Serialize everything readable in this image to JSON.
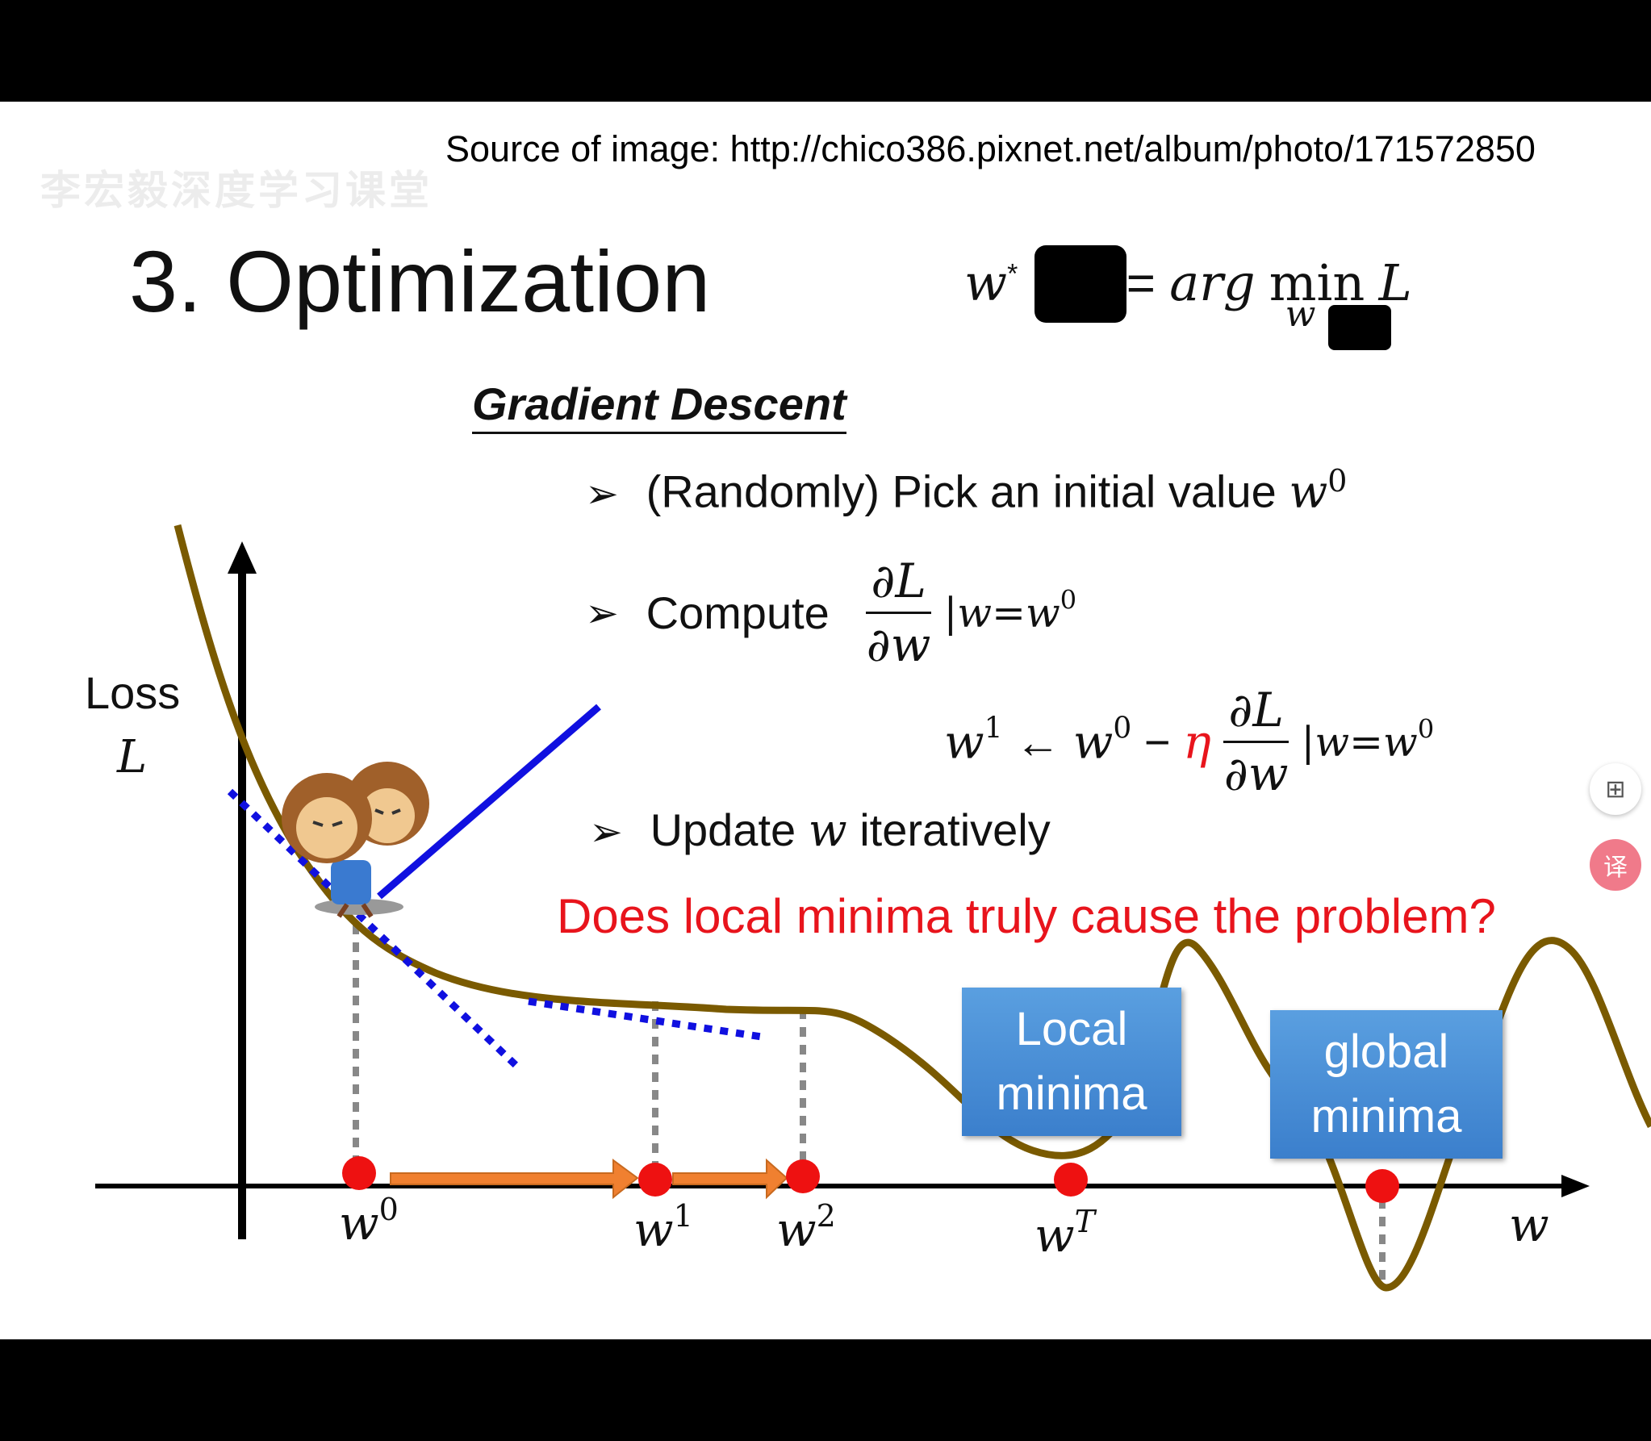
{
  "source_text": "Source of image: http://chico386.pixnet.net/album/photo/171572850",
  "watermark": "李宏毅深度学习课堂",
  "title": "3. Optimization",
  "formula": {
    "lhs": "w",
    "lhs_sup": "*",
    "eq": "=",
    "rhs_arg": "arg",
    "rhs_min": "min",
    "rhs_L": "L",
    "rhs_sub": "w"
  },
  "gd_title": "Gradient Descent",
  "bullets": {
    "b1_text": "(Randomly) Pick an initial value ",
    "b1_var": "w",
    "b1_sup": "0",
    "b2_text": "Compute",
    "b2_num": "∂L",
    "b2_den": "∂w",
    "b2_eval": "|w=w",
    "b2_eval_sup": "0",
    "update_lhs": "w",
    "update_lhs_sup": "1",
    "update_arrow": " ← ",
    "update_w0": "w",
    "update_w0_sup": "0",
    "update_minus": " − ",
    "update_eta": "η",
    "update_num": "∂L",
    "update_den": "∂w",
    "update_eval": "|w=w",
    "update_eval_sup": "0",
    "b3_text1": "Update ",
    "b3_var": "w",
    "b3_text2": " iteratively"
  },
  "question": "Does local minima truly cause the problem?",
  "axis": {
    "loss_label": "Loss",
    "loss_var": "L",
    "x_var": "w"
  },
  "points": {
    "w0": "w",
    "w0_sup": "0",
    "w1": "w",
    "w1_sup": "1",
    "w2": "w",
    "w2_sup": "2",
    "wT": "w",
    "wT_sup": "T"
  },
  "boxes": {
    "local": [
      "Local",
      "minima"
    ],
    "global": [
      "global",
      "minima"
    ]
  },
  "colors": {
    "curve": "#7a5a00",
    "tangent": "#1010e0",
    "point": "#ee1111",
    "arrow": "#f08030",
    "question": "#e8141c",
    "box": "#4a8fd8"
  },
  "side_buttons": [
    "grid-add-icon",
    "translate-icon"
  ]
}
